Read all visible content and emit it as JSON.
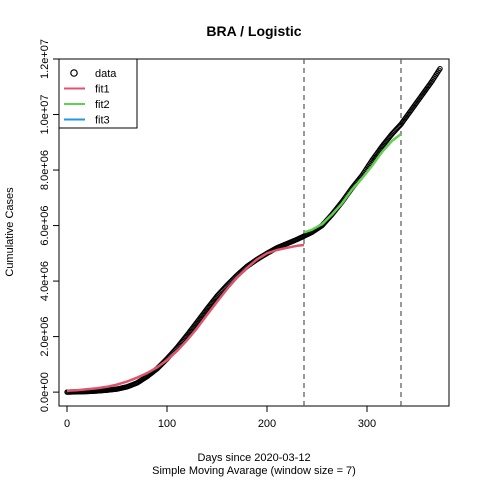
{
  "chart_data": {
    "type": "line",
    "title": "BRA / Logistic",
    "xlabel": "Days since 2020-03-12",
    "xlabel2": "Simple Moving Avarage (window size = 7)",
    "ylabel": "Cumulative Cases",
    "xlim": [
      -8,
      382
    ],
    "ylim": [
      -500000,
      12000000
    ],
    "x_ticks": [
      0,
      100,
      200,
      300
    ],
    "x_tick_labels": [
      "0",
      "100",
      "200",
      "300"
    ],
    "y_ticks": [
      0,
      2000000,
      4000000,
      6000000,
      8000000,
      10000000,
      12000000
    ],
    "y_tick_labels": [
      "0.0e+00",
      "2.0e+06",
      "4.0e+06",
      "6.0e+06",
      "8.0e+06",
      "1.0e+07",
      "1.2e+07"
    ],
    "vlines": [
      237,
      334
    ],
    "grid": false,
    "legend_position": "top-left",
    "legend": [
      {
        "label": "data",
        "kind": "point",
        "color": "#000000"
      },
      {
        "label": "fit1",
        "kind": "line",
        "color": "#DF536B"
      },
      {
        "label": "fit2",
        "kind": "line",
        "color": "#61D04F"
      },
      {
        "label": "fit3",
        "kind": "line",
        "color": "#2297E6"
      }
    ],
    "series": [
      {
        "name": "data",
        "kind": "points",
        "color": "#000000",
        "x": [
          0,
          10,
          20,
          30,
          40,
          50,
          60,
          70,
          80,
          90,
          100,
          110,
          120,
          130,
          140,
          150,
          160,
          170,
          180,
          190,
          200,
          210,
          220,
          230,
          237,
          245,
          255,
          265,
          275,
          285,
          295,
          305,
          315,
          325,
          334,
          345,
          355,
          365,
          373
        ],
        "y": [
          0,
          10000,
          20000,
          40000,
          70000,
          110000,
          190000,
          330000,
          560000,
          840000,
          1200000,
          1600000,
          2050000,
          2520000,
          3000000,
          3460000,
          3850000,
          4210000,
          4530000,
          4780000,
          5000000,
          5200000,
          5350000,
          5500000,
          5620000,
          5760000,
          6000000,
          6400000,
          6850000,
          7350000,
          7800000,
          8350000,
          8850000,
          9300000,
          9650000,
          10200000,
          10700000,
          11200000,
          11650000
        ]
      },
      {
        "name": "fit1",
        "kind": "line",
        "color": "#DF536B",
        "x": [
          0,
          10,
          20,
          30,
          40,
          50,
          60,
          70,
          80,
          90,
          100,
          110,
          120,
          130,
          140,
          150,
          160,
          170,
          180,
          190,
          200,
          210,
          220,
          230,
          237
        ],
        "y": [
          50000,
          70000,
          100000,
          140000,
          190000,
          270000,
          380000,
          520000,
          680000,
          890000,
          1150000,
          1480000,
          1870000,
          2300000,
          2780000,
          3250000,
          3710000,
          4120000,
          4480000,
          4780000,
          5000000,
          5120000,
          5200000,
          5270000,
          5300000
        ]
      },
      {
        "name": "fit2",
        "kind": "line",
        "color": "#61D04F",
        "x": [
          237,
          245,
          255,
          265,
          275,
          285,
          295,
          305,
          315,
          325,
          334
        ],
        "y": [
          5750000,
          5850000,
          6050000,
          6400000,
          6800000,
          7300000,
          7700000,
          8150000,
          8650000,
          9050000,
          9300000
        ]
      },
      {
        "name": "fit3",
        "kind": "line",
        "color": "#2297E6",
        "x": [],
        "y": []
      }
    ]
  }
}
